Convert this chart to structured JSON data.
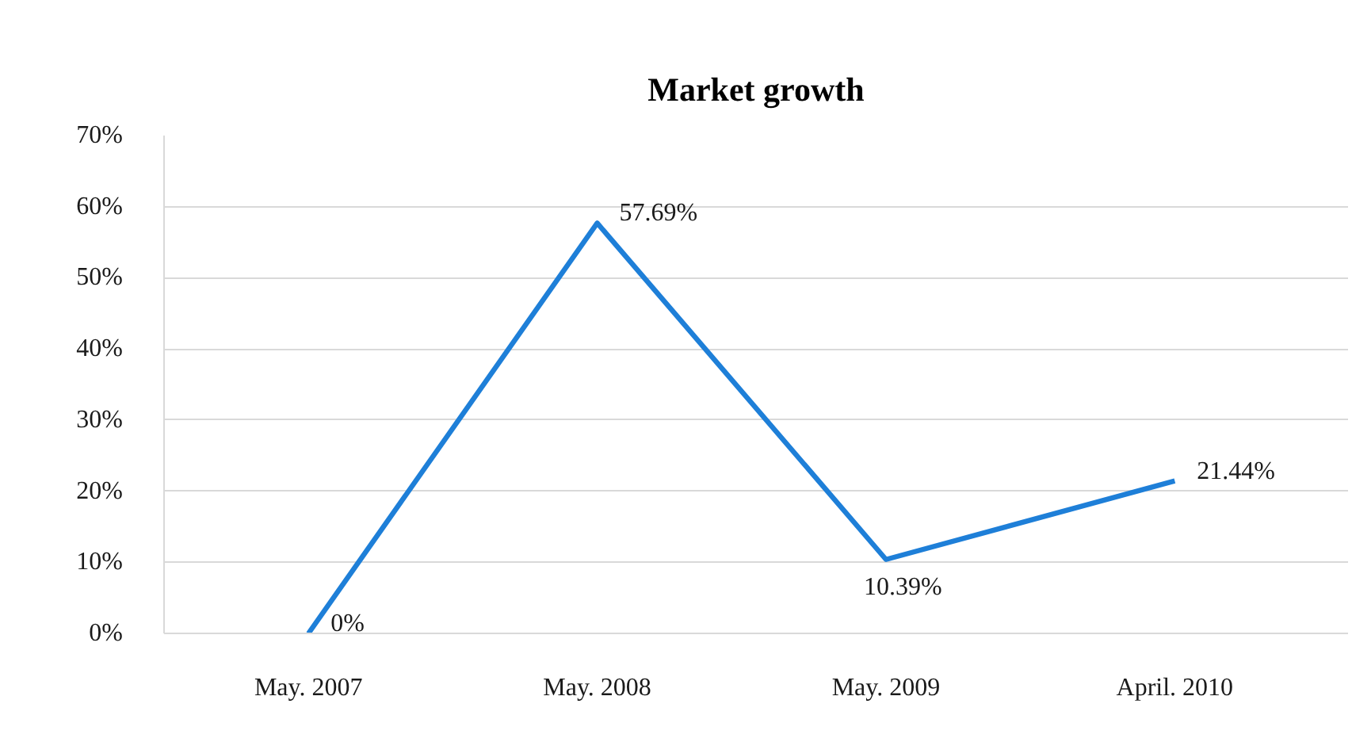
{
  "chart_data": {
    "type": "line",
    "title": "Market growth",
    "categories": [
      "May. 2007",
      "May. 2008",
      "May. 2009",
      "April. 2010"
    ],
    "series": [
      {
        "color": "#1e7fd8",
        "values": [
          0,
          57.69,
          10.39,
          21.44
        ],
        "value_labels": [
          "0%",
          "57.69%",
          "10.39%",
          "21.44%"
        ]
      }
    ],
    "ylim": [
      0,
      70
    ],
    "yticks": [
      {
        "value": 0,
        "label": "0%"
      },
      {
        "value": 10,
        "label": "10%"
      },
      {
        "value": 20,
        "label": "20%"
      },
      {
        "value": 30,
        "label": "30%"
      },
      {
        "value": 40,
        "label": "40%"
      },
      {
        "value": 50,
        "label": "50%"
      },
      {
        "value": 60,
        "label": "60%"
      },
      {
        "value": 70,
        "label": "70%"
      }
    ],
    "grid": "y"
  }
}
